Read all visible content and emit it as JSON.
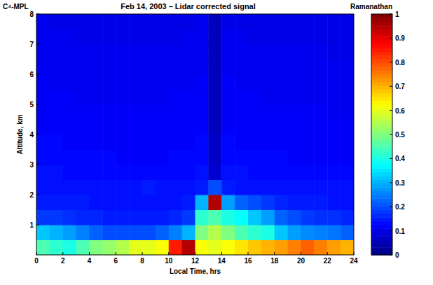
{
  "chart_data": {
    "type": "heatmap",
    "title": "Feb 14, 2003 – Lidar corrected signal",
    "annotations": [
      "C⁴-MPL",
      "Ramanathan"
    ],
    "x_label": "Local Time, hrs",
    "y_label": "Altitude, km",
    "x": [
      0.5,
      1.5,
      2.5,
      3.5,
      4.5,
      5.5,
      6.5,
      7.5,
      8.5,
      9.5,
      10.5,
      11.5,
      12.5,
      13.5,
      14.5,
      15.5,
      16.5,
      17.5,
      18.5,
      19.5,
      20.5,
      21.5,
      22.5,
      23.5
    ],
    "y": [
      0.25,
      0.75,
      1.25,
      1.75,
      2.25,
      2.75,
      3.25,
      3.75,
      4.25,
      4.75,
      5.25,
      5.75,
      6.25,
      6.75,
      7.25,
      7.75
    ],
    "cells": [
      [
        0.45,
        0.42,
        0.4,
        0.45,
        0.5,
        0.52,
        0.55,
        0.6,
        0.6,
        0.62,
        0.85,
        0.95,
        0.62,
        0.6,
        0.62,
        0.65,
        0.68,
        0.7,
        0.72,
        0.75,
        0.78,
        0.75,
        0.72,
        0.7
      ],
      [
        0.32,
        0.3,
        0.28,
        0.25,
        0.22,
        0.2,
        0.2,
        0.2,
        0.2,
        0.22,
        0.25,
        0.3,
        0.5,
        0.55,
        0.5,
        0.45,
        0.42,
        0.4,
        0.32,
        0.28,
        0.26,
        0.25,
        0.24,
        0.22
      ],
      [
        0.18,
        0.18,
        0.17,
        0.16,
        0.16,
        0.15,
        0.15,
        0.15,
        0.15,
        0.15,
        0.16,
        0.18,
        0.42,
        0.45,
        0.4,
        0.38,
        0.32,
        0.28,
        0.22,
        0.2,
        0.18,
        0.17,
        0.17,
        0.16
      ],
      [
        0.15,
        0.15,
        0.15,
        0.15,
        0.14,
        0.14,
        0.14,
        0.14,
        0.14,
        0.14,
        0.14,
        0.15,
        0.3,
        0.95,
        0.28,
        0.22,
        0.2,
        0.18,
        0.16,
        0.15,
        0.15,
        0.15,
        0.14,
        0.14
      ],
      [
        0.14,
        0.14,
        0.14,
        0.14,
        0.14,
        0.14,
        0.14,
        0.14,
        0.15,
        0.14,
        0.14,
        0.14,
        0.15,
        0.2,
        0.15,
        0.14,
        0.14,
        0.14,
        0.14,
        0.14,
        0.14,
        0.14,
        0.14,
        0.14
      ],
      [
        0.14,
        0.14,
        0.13,
        0.13,
        0.13,
        0.13,
        0.13,
        0.13,
        0.13,
        0.13,
        0.13,
        0.13,
        0.14,
        0.08,
        0.14,
        0.14,
        0.13,
        0.13,
        0.13,
        0.13,
        0.13,
        0.13,
        0.13,
        0.13
      ],
      [
        0.13,
        0.13,
        0.13,
        0.13,
        0.13,
        0.13,
        0.12,
        0.12,
        0.12,
        0.12,
        0.13,
        0.13,
        0.13,
        0.07,
        0.13,
        0.13,
        0.13,
        0.13,
        0.13,
        0.12,
        0.12,
        0.12,
        0.12,
        0.12
      ],
      [
        0.13,
        0.13,
        0.12,
        0.12,
        0.12,
        0.12,
        0.12,
        0.12,
        0.12,
        0.12,
        0.12,
        0.12,
        0.13,
        0.07,
        0.13,
        0.12,
        0.12,
        0.12,
        0.12,
        0.12,
        0.12,
        0.12,
        0.12,
        0.12
      ],
      [
        0.12,
        0.12,
        0.12,
        0.12,
        0.12,
        0.12,
        0.12,
        0.12,
        0.12,
        0.12,
        0.12,
        0.12,
        0.12,
        0.06,
        0.12,
        0.12,
        0.12,
        0.12,
        0.12,
        0.12,
        0.12,
        0.12,
        0.12,
        0.12
      ],
      [
        0.12,
        0.12,
        0.12,
        0.12,
        0.12,
        0.12,
        0.12,
        0.12,
        0.12,
        0.12,
        0.12,
        0.12,
        0.12,
        0.06,
        0.12,
        0.12,
        0.12,
        0.12,
        0.12,
        0.12,
        0.12,
        0.12,
        0.11,
        0.11
      ],
      [
        0.12,
        0.12,
        0.12,
        0.11,
        0.11,
        0.11,
        0.11,
        0.11,
        0.11,
        0.11,
        0.12,
        0.12,
        0.12,
        0.06,
        0.12,
        0.12,
        0.12,
        0.11,
        0.11,
        0.11,
        0.11,
        0.11,
        0.11,
        0.11
      ],
      [
        0.12,
        0.11,
        0.11,
        0.11,
        0.11,
        0.11,
        0.11,
        0.11,
        0.11,
        0.11,
        0.11,
        0.11,
        0.12,
        0.06,
        0.12,
        0.11,
        0.11,
        0.11,
        0.11,
        0.11,
        0.11,
        0.11,
        0.11,
        0.11
      ],
      [
        0.11,
        0.11,
        0.11,
        0.11,
        0.11,
        0.11,
        0.11,
        0.11,
        0.11,
        0.11,
        0.11,
        0.11,
        0.11,
        0.06,
        0.11,
        0.11,
        0.11,
        0.11,
        0.11,
        0.11,
        0.11,
        0.11,
        0.11,
        0.11
      ],
      [
        0.11,
        0.11,
        0.11,
        0.11,
        0.11,
        0.11,
        0.11,
        0.11,
        0.11,
        0.11,
        0.11,
        0.11,
        0.11,
        0.06,
        0.11,
        0.11,
        0.11,
        0.11,
        0.11,
        0.11,
        0.11,
        0.11,
        0.1,
        0.1
      ],
      [
        0.11,
        0.11,
        0.11,
        0.1,
        0.1,
        0.1,
        0.1,
        0.1,
        0.1,
        0.1,
        0.1,
        0.11,
        0.11,
        0.06,
        0.11,
        0.11,
        0.1,
        0.1,
        0.1,
        0.1,
        0.1,
        0.1,
        0.1,
        0.1
      ],
      [
        0.11,
        0.1,
        0.1,
        0.1,
        0.1,
        0.1,
        0.1,
        0.1,
        0.1,
        0.1,
        0.1,
        0.1,
        0.11,
        0.06,
        0.1,
        0.1,
        0.1,
        0.1,
        0.1,
        0.1,
        0.1,
        0.1,
        0.1,
        0.1
      ]
    ],
    "xlim": [
      0,
      24
    ],
    "ylim": [
      0,
      8
    ],
    "xticks": [
      0,
      2,
      4,
      6,
      8,
      10,
      12,
      14,
      16,
      18,
      20,
      22,
      24
    ],
    "yticks": [
      1,
      2,
      3,
      4,
      5,
      6,
      7,
      8
    ],
    "colorbar": {
      "range": [
        0,
        1
      ],
      "ticks": [
        0,
        0.1,
        0.2,
        0.3,
        0.4,
        0.5,
        0.6,
        0.7,
        0.8,
        0.9,
        1
      ]
    }
  }
}
